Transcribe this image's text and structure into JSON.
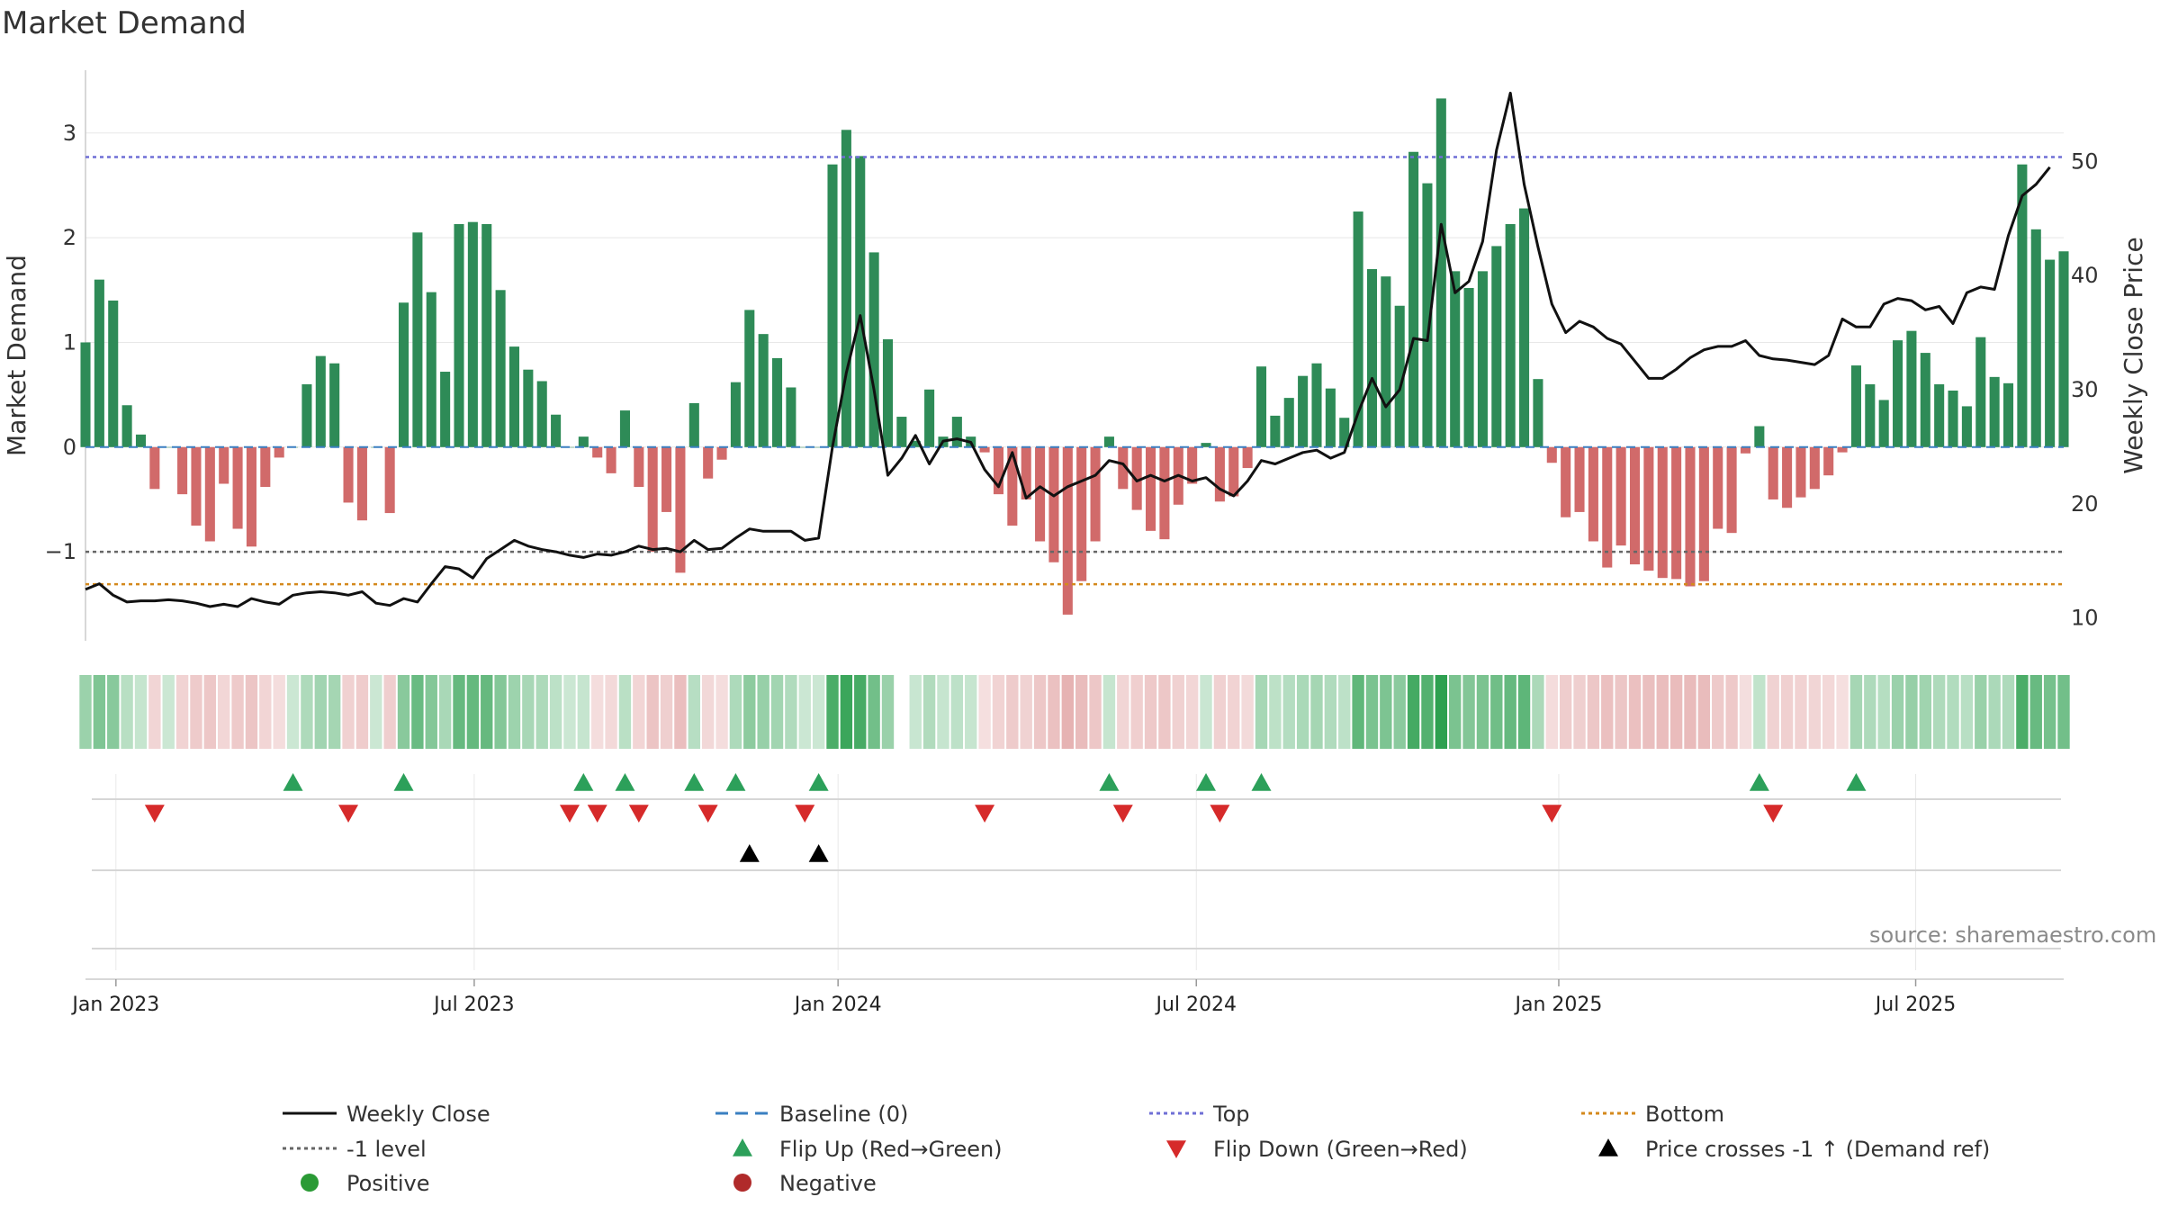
{
  "title": "Market Demand",
  "source": "source: sharemaestro.com",
  "chart_data": {
    "type": "bar",
    "title": "Market Demand",
    "ylabel": "Market Demand",
    "y2label": "Weekly Close Price",
    "ylim": [
      -1.85,
      3.6
    ],
    "y2lim": [
      8,
      58
    ],
    "yticks": [
      -1,
      0,
      1,
      2,
      3
    ],
    "y2ticks": [
      10,
      20,
      30,
      40,
      50
    ],
    "ytick_labels": [
      "−1",
      "0",
      "1",
      "2",
      "3"
    ],
    "y2tick_labels": [
      "10",
      "20",
      "30",
      "40",
      "50"
    ],
    "x_range_weeks": [
      0,
      143
    ],
    "xticks": [
      {
        "label": "Jan 2023",
        "week": 2.2
      },
      {
        "label": "Jul 2023",
        "week": 28.1
      },
      {
        "label": "Jan 2024",
        "week": 54.4
      },
      {
        "label": "Jul 2024",
        "week": 80.3
      },
      {
        "label": "Jan 2025",
        "week": 106.5
      },
      {
        "label": "Jul 2025",
        "week": 132.3
      }
    ],
    "demand": [
      1.0,
      1.6,
      1.4,
      0.4,
      0.12,
      -0.4,
      0.0,
      -0.45,
      -0.75,
      -0.9,
      -0.35,
      -0.78,
      -0.95,
      -0.38,
      -0.1,
      0.0,
      0.6,
      0.87,
      0.8,
      -0.53,
      -0.7,
      0.0,
      -0.63,
      1.38,
      2.05,
      1.48,
      0.72,
      2.13,
      2.15,
      2.13,
      1.5,
      0.96,
      0.74,
      0.63,
      0.31,
      0.0,
      0.1,
      -0.1,
      -0.25,
      0.35,
      -0.38,
      -1.0,
      -0.62,
      -1.2,
      0.42,
      -0.3,
      -0.12,
      0.62,
      1.31,
      1.08,
      0.85,
      0.57,
      0.0,
      0.0,
      2.7,
      3.03,
      2.78,
      1.86,
      1.03,
      0.29,
      0.06,
      0.55,
      0.1,
      0.29,
      0.1,
      -0.05,
      -0.45,
      -0.75,
      -0.5,
      -0.9,
      -1.1,
      -1.6,
      -1.28,
      -0.9,
      0.1,
      -0.4,
      -0.6,
      -0.8,
      -0.88,
      -0.55,
      -0.35,
      0.04,
      -0.52,
      -0.47,
      -0.2,
      0.77,
      0.3,
      0.47,
      0.68,
      0.8,
      0.56,
      0.28,
      2.25,
      1.7,
      1.63,
      1.35,
      2.82,
      2.52,
      3.33,
      1.68,
      1.52,
      1.68,
      1.92,
      2.13,
      2.28,
      0.65,
      -0.15,
      -0.67,
      -0.62,
      -0.9,
      -1.15,
      -0.94,
      -1.12,
      -1.18,
      -1.25,
      -1.26,
      -1.33,
      -1.28,
      -0.78,
      -0.82,
      -0.06,
      0.2,
      -0.5,
      -0.58,
      -0.48,
      -0.4,
      -0.27,
      -0.05,
      0.78,
      0.6,
      0.45,
      1.02,
      1.11,
      0.9,
      0.6,
      0.54,
      0.39,
      1.05,
      0.67,
      0.61,
      2.7,
      2.08,
      1.79,
      1.87
    ],
    "price": [
      12.5,
      13.0,
      12.0,
      11.4,
      11.5,
      11.5,
      11.6,
      11.5,
      11.3,
      11.0,
      11.2,
      11.0,
      11.7,
      11.4,
      11.2,
      12.0,
      12.2,
      12.3,
      12.2,
      12.0,
      12.3,
      11.3,
      11.1,
      11.7,
      11.4,
      13.0,
      14.5,
      14.3,
      13.5,
      15.2,
      16.0,
      16.8,
      16.3,
      16.0,
      15.8,
      15.5,
      15.3,
      15.6,
      15.5,
      15.8,
      16.3,
      16.0,
      16.1,
      15.8,
      16.8,
      16.0,
      16.1,
      17.0,
      17.8,
      17.6,
      17.6,
      17.6,
      16.8,
      17.0,
      25.0,
      31.5,
      36.5,
      30.0,
      22.5,
      24.0,
      26.0,
      23.5,
      25.5,
      25.7,
      25.4,
      23.0,
      21.5,
      24.5,
      20.5,
      21.5,
      20.7,
      21.5,
      22.0,
      22.5,
      23.8,
      23.5,
      22.0,
      22.5,
      22.0,
      22.5,
      22.0,
      22.3,
      21.3,
      20.7,
      22.0,
      23.8,
      23.5,
      24.0,
      24.5,
      24.7,
      24.0,
      24.5,
      28.0,
      31.0,
      28.5,
      30.0,
      34.5,
      34.3,
      44.5,
      38.5,
      39.5,
      43.0,
      51.0,
      56.0,
      48.0,
      42.5,
      37.5,
      35.0,
      36.0,
      35.5,
      34.5,
      34.0,
      32.5,
      31.0,
      31.0,
      31.8,
      32.8,
      33.5,
      33.8,
      33.8,
      34.3,
      33.0,
      32.7,
      32.6,
      32.4,
      32.2,
      33.0,
      36.2,
      35.5,
      35.5,
      37.5,
      38.0,
      37.8,
      37.0,
      37.3,
      35.8,
      38.5,
      39.0,
      38.8,
      43.5,
      47.0,
      48.0,
      49.5
    ],
    "reference_lines": [
      {
        "name": "Top",
        "value": 2.77,
        "color": "#6f6fd6"
      },
      {
        "name": "-1 level",
        "value": -1.0,
        "color": "#666666"
      },
      {
        "name": "Bottom",
        "value": -1.31,
        "color": "#d4891c"
      }
    ],
    "flip_up_weeks": [
      15,
      23,
      36,
      39,
      44,
      47,
      53,
      74,
      81,
      85,
      121,
      128
    ],
    "flip_down_weeks": [
      5,
      19,
      35,
      37,
      40,
      45,
      52,
      65,
      75,
      82,
      106,
      122
    ],
    "price_cross_weeks": [
      48,
      53
    ],
    "missing_strip_weeks": [
      59
    ]
  },
  "legend": [
    {
      "label": "Weekly Close",
      "symbol": "line-solid",
      "color": "#111111"
    },
    {
      "label": "Baseline (0)",
      "symbol": "line-dash",
      "color": "#3a7fc1"
    },
    {
      "label": "Top",
      "symbol": "line-dot",
      "color": "#6f6fd6"
    },
    {
      "label": "Bottom",
      "symbol": "line-dot",
      "color": "#d4891c"
    },
    {
      "label": "-1 level",
      "symbol": "line-dot",
      "color": "#666666"
    },
    {
      "label": "Flip Up (Red→Green)",
      "symbol": "triangle-up",
      "color": "#2ca05a"
    },
    {
      "label": "Flip Down (Green→Red)",
      "symbol": "triangle-down",
      "color": "#d62a2a"
    },
    {
      "label": "Price crosses -1 ↑ (Demand ref)",
      "symbol": "triangle-up",
      "color": "#000000"
    },
    {
      "label": "Positive",
      "symbol": "circle",
      "color": "#2a9a35"
    },
    {
      "label": "Negative",
      "symbol": "circle",
      "color": "#b02a2a"
    }
  ],
  "colors": {
    "positive": "#2e8b57",
    "negative": "#d16a6a",
    "grid": "#e8e8e8"
  }
}
